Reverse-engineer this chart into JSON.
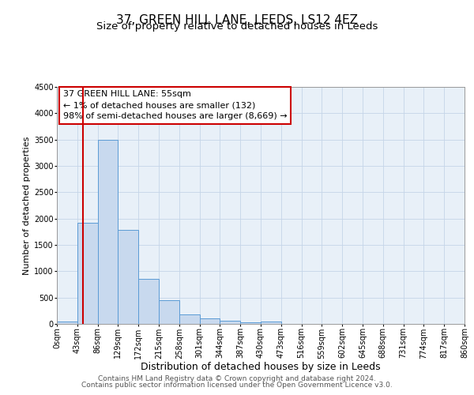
{
  "title": "37, GREEN HILL LANE, LEEDS, LS12 4EZ",
  "subtitle": "Size of property relative to detached houses in Leeds",
  "xlabel": "Distribution of detached houses by size in Leeds",
  "ylabel": "Number of detached properties",
  "bar_edges": [
    0,
    43,
    86,
    129,
    172,
    215,
    258,
    301,
    344,
    387,
    430,
    473,
    516,
    559,
    602,
    645,
    688,
    731,
    774,
    817,
    860
  ],
  "bar_heights": [
    50,
    1920,
    3500,
    1780,
    860,
    450,
    175,
    100,
    60,
    30,
    50,
    0,
    0,
    0,
    0,
    0,
    0,
    0,
    0,
    0
  ],
  "bar_color": "#c8d9ee",
  "bar_edgecolor": "#5b9bd5",
  "vline_x": 55,
  "vline_color": "#cc0000",
  "ylim": [
    0,
    4500
  ],
  "yticks": [
    0,
    500,
    1000,
    1500,
    2000,
    2500,
    3000,
    3500,
    4000,
    4500
  ],
  "xtick_labels": [
    "0sqm",
    "43sqm",
    "86sqm",
    "129sqm",
    "172sqm",
    "215sqm",
    "258sqm",
    "301sqm",
    "344sqm",
    "387sqm",
    "430sqm",
    "473sqm",
    "516sqm",
    "559sqm",
    "602sqm",
    "645sqm",
    "688sqm",
    "731sqm",
    "774sqm",
    "817sqm",
    "860sqm"
  ],
  "annotation_title": "37 GREEN HILL LANE: 55sqm",
  "annotation_line1": "← 1% of detached houses are smaller (132)",
  "annotation_line2": "98% of semi-detached houses are larger (8,669) →",
  "annotation_box_facecolor": "#ffffff",
  "annotation_box_edgecolor": "#cc0000",
  "grid_color": "#c5d5e8",
  "bg_color": "#e8f0f8",
  "footer1": "Contains HM Land Registry data © Crown copyright and database right 2024.",
  "footer2": "Contains public sector information licensed under the Open Government Licence v3.0.",
  "title_fontsize": 11,
  "subtitle_fontsize": 9.5,
  "xlabel_fontsize": 9,
  "ylabel_fontsize": 8,
  "tick_fontsize": 7,
  "annotation_fontsize": 8,
  "footer_fontsize": 6.5
}
